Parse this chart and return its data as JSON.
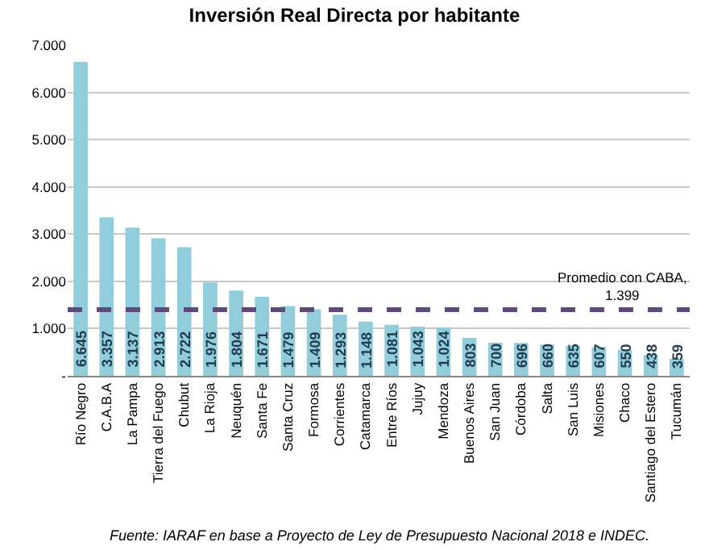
{
  "chart_data": {
    "type": "bar",
    "title": "Inversión Real Directa por habitante",
    "categories": [
      "Río Negro",
      "C.A.B.A",
      "La Pampa",
      "Tierra del Fuego",
      "Chubut",
      "La Rioja",
      "Neuquén",
      "Santa Fe",
      "Santa Cruz",
      "Formosa",
      "Corrientes",
      "Catamarca",
      "Entre Ríos",
      "Jujuy",
      "Mendoza",
      "Buenos Aires",
      "San Juan",
      "Córdoba",
      "Salta",
      "San Luis",
      "Misiones",
      "Chaco",
      "Santiago del Estero",
      "Tucumán"
    ],
    "values": [
      6645,
      3357,
      3137,
      2913,
      2722,
      1976,
      1804,
      1671,
      1479,
      1409,
      1293,
      1148,
      1081,
      1043,
      1024,
      803,
      700,
      696,
      660,
      635,
      607,
      550,
      438,
      359
    ],
    "value_labels": [
      "6.645",
      "3.357",
      "3.137",
      "2.913",
      "2.722",
      "1.976",
      "1.804",
      "1.671",
      "1.479",
      "1.409",
      "1.293",
      "1.148",
      "1.081",
      "1.043",
      "1.024",
      "803",
      "700",
      "696",
      "660",
      "635",
      "607",
      "550",
      "438",
      "359"
    ],
    "color": "#92cddc",
    "ylim": [
      0,
      7000
    ],
    "yticks": [
      {
        "value": 0,
        "label": "-"
      },
      {
        "value": 1000,
        "label": "1.000"
      },
      {
        "value": 2000,
        "label": "2.000"
      },
      {
        "value": 3000,
        "label": "3.000"
      },
      {
        "value": 4000,
        "label": "4.000"
      },
      {
        "value": 5000,
        "label": "5.000"
      },
      {
        "value": 6000,
        "label": "6.000"
      },
      {
        "value": 7000,
        "label": "7.000"
      }
    ],
    "grid": "y",
    "ref_lines": [
      {
        "axis": "y",
        "value": 1399,
        "label": "Promedio con CABA, 1.399",
        "color": "#604a7b",
        "line_style": "dashed"
      }
    ],
    "annotations": [
      "Fuente: IARAF en base a Proyecto de Ley de Presupuesto Nacional 2018 e INDEC."
    ]
  }
}
